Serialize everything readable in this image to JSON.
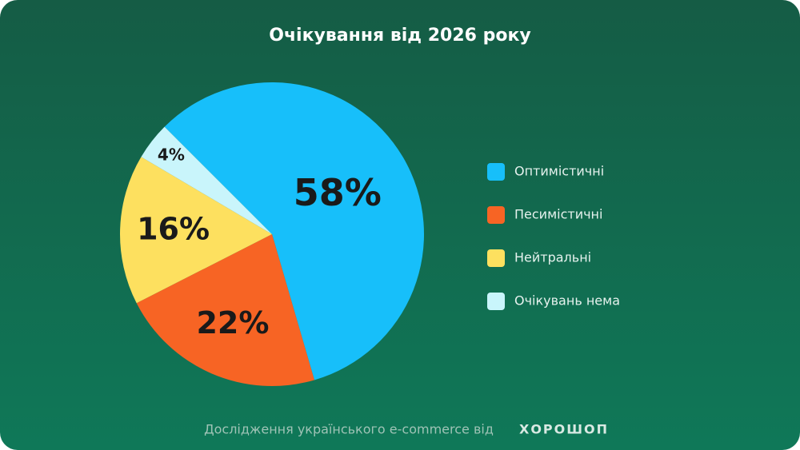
{
  "chart_data": {
    "type": "pie",
    "title": "Очікування від 2026 року",
    "categories": [
      "Оптимістичні",
      "Песимістичні",
      "Нейтральні",
      "Очікувань нема"
    ],
    "values": [
      58,
      22,
      16,
      4
    ],
    "value_labels": [
      "58%",
      "22%",
      "16%",
      "4%"
    ],
    "colors": [
      "#17bffa",
      "#f76424",
      "#fde05f",
      "#c9f5fb"
    ],
    "source": "Дослідження українського e-commerce від",
    "brand": "ХОРОШОП"
  }
}
